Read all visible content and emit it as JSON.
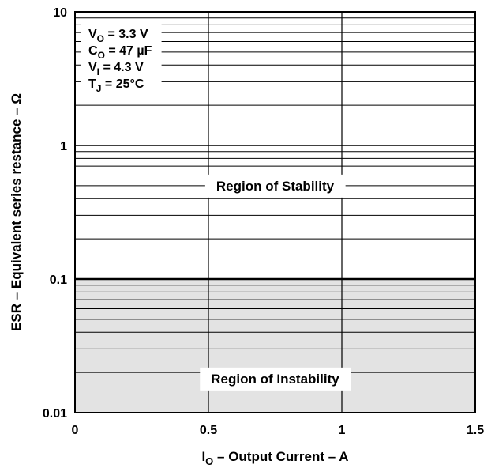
{
  "chart_data": {
    "type": "area",
    "title": "",
    "xlabel": {
      "main": "I",
      "sub": "O",
      "rest": " – Output Current – A"
    },
    "ylabel": "ESR – Equivalent series restance – Ω",
    "xlim": [
      0,
      1.5
    ],
    "ylim": [
      0.01,
      10
    ],
    "yscale": "log",
    "x_ticks": [
      {
        "value": 0,
        "label": "0"
      },
      {
        "value": 0.5,
        "label": "0.5"
      },
      {
        "value": 1,
        "label": "1"
      },
      {
        "value": 1.5,
        "label": "1.5"
      }
    ],
    "y_ticks": [
      {
        "value": 0.01,
        "label": "0.01"
      },
      {
        "value": 0.1,
        "label": "0.1"
      },
      {
        "value": 1,
        "label": "1"
      },
      {
        "value": 10,
        "label": "10"
      }
    ],
    "grid": true,
    "regions": [
      {
        "name": "Region of Stability",
        "y_from": 0.1,
        "y_to": 10,
        "color": "#ffffff",
        "label_at": {
          "x": 0.75,
          "y": 0.5
        }
      },
      {
        "name": "Region of Instability",
        "y_from": 0.01,
        "y_to": 0.1,
        "color": "#e3e3e3",
        "label_at": {
          "x": 0.75,
          "y": 0.018
        }
      }
    ],
    "boundary_esr": 0.1,
    "conditions": [
      {
        "main": "V",
        "sub": "O",
        "rest": " = 3.3 V"
      },
      {
        "main": "C",
        "sub": "O",
        "rest": " = 47 µF"
      },
      {
        "main": "V",
        "sub": "I",
        "rest": " = 4.3 V"
      },
      {
        "main": "T",
        "sub": "J",
        "rest": " = 25°C"
      }
    ]
  }
}
